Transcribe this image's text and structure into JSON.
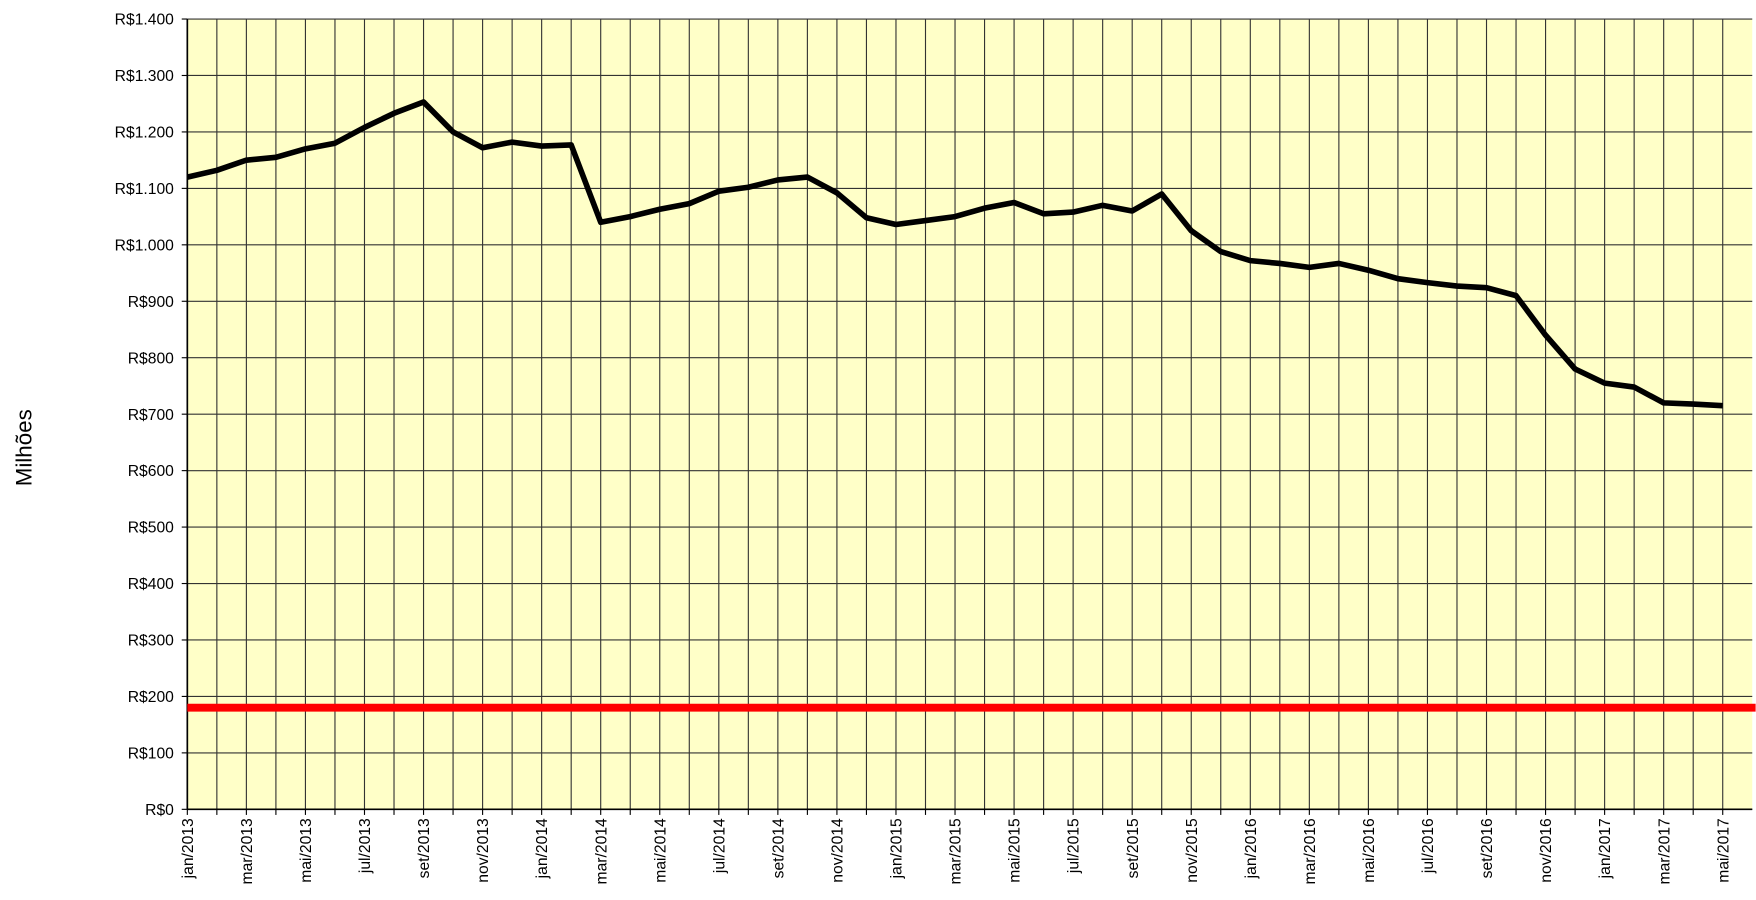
{
  "chart_data": {
    "type": "line",
    "y_label": "Milhões",
    "categories": [
      "jan/2013",
      null,
      "mar/2013",
      null,
      "mai/2013",
      null,
      "jul/2013",
      null,
      "set/2013",
      null,
      "nov/2013",
      null,
      "jan/2014",
      null,
      "mar/2014",
      null,
      "mai/2014",
      null,
      "jul/2014",
      null,
      "set/2014",
      null,
      "nov/2014",
      null,
      "jan/2015",
      null,
      "mar/2015",
      null,
      "mai/2015",
      null,
      "jul/2015",
      null,
      "set/2015",
      null,
      "nov/2015",
      null,
      "jan/2016",
      null,
      "mar/2016",
      null,
      "mai/2016",
      null,
      "jul/2016",
      null,
      "set/2016",
      null,
      "nov/2016",
      null,
      "jan/2017",
      null,
      "mar/2017",
      null,
      "mai/2017"
    ],
    "series": [
      {
        "color": "#000000",
        "values": [
          1120,
          1132,
          1150,
          1155,
          1170,
          1180,
          1208,
          1233,
          1253,
          1200,
          1172,
          1182,
          1175,
          1177,
          1040,
          1050,
          1063,
          1073,
          1095,
          1102,
          1115,
          1120,
          1092,
          1048,
          1036,
          1043,
          1050,
          1065,
          1075,
          1055,
          1058,
          1070,
          1060,
          1090,
          1025,
          988,
          972,
          967,
          960,
          967,
          955,
          940,
          933,
          927,
          924,
          910,
          840,
          780,
          755,
          748,
          720,
          718,
          715
        ]
      }
    ],
    "reference_line": {
      "value": 180,
      "color": "#ff0000"
    },
    "ylim": [
      0,
      1400
    ],
    "yticks": [
      {
        "value": 0,
        "label": "R$0"
      },
      {
        "value": 100,
        "label": "R$100"
      },
      {
        "value": 200,
        "label": "R$200"
      },
      {
        "value": 300,
        "label": "R$300"
      },
      {
        "value": 400,
        "label": "R$400"
      },
      {
        "value": 500,
        "label": "R$500"
      },
      {
        "value": 600,
        "label": "R$600"
      },
      {
        "value": 700,
        "label": "R$700"
      },
      {
        "value": 800,
        "label": "R$800"
      },
      {
        "value": 900,
        "label": "R$900"
      },
      {
        "value": 1000,
        "label": "R$1.000"
      },
      {
        "value": 1100,
        "label": "R$1.100"
      },
      {
        "value": 1200,
        "label": "R$1.200"
      },
      {
        "value": 1300,
        "label": "R$1.300"
      },
      {
        "value": 1400,
        "label": "R$1.400"
      }
    ],
    "grid": true,
    "background": "#ffffc8"
  }
}
